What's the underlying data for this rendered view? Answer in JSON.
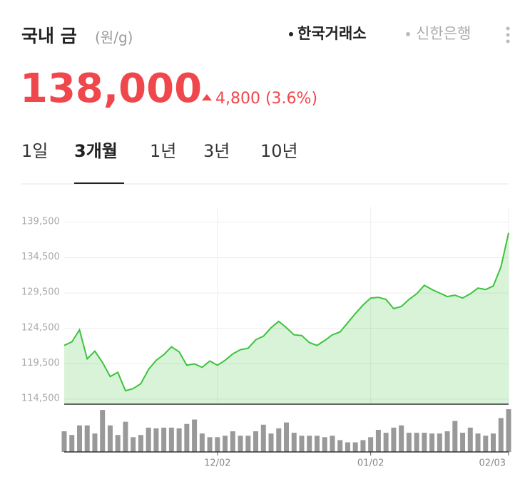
{
  "header": {
    "title": "국내 금",
    "unit": "(원/g)",
    "sources": [
      "한국거래소",
      "신한은행"
    ]
  },
  "price": {
    "value": "138,000",
    "change": "4,800 (3.6%)"
  },
  "tabs": [
    "1일",
    "3개월",
    "1년",
    "3년",
    "10년"
  ],
  "chart_data": [
    {
      "type": "area",
      "categories": [
        null,
        null,
        null,
        null,
        null,
        null,
        null,
        null,
        null,
        null,
        null,
        null,
        null,
        null,
        null,
        null,
        null,
        null,
        null,
        null,
        "12/02",
        null,
        null,
        null,
        null,
        null,
        null,
        null,
        null,
        null,
        null,
        null,
        null,
        null,
        null,
        null,
        null,
        null,
        null,
        null,
        "01/02",
        null,
        null,
        null,
        null,
        null,
        null,
        null,
        null,
        null,
        null,
        null,
        null,
        null,
        null,
        null,
        null,
        null,
        "02/03"
      ],
      "values": [
        122100,
        122600,
        124300,
        120200,
        121300,
        119700,
        117700,
        118300,
        115700,
        116000,
        116700,
        118700,
        120000,
        120800,
        121900,
        121200,
        119300,
        119500,
        119000,
        119900,
        119300,
        120000,
        120900,
        121500,
        121700,
        122900,
        123400,
        124600,
        125500,
        124600,
        123600,
        123500,
        122500,
        122100,
        122800,
        123600,
        124000,
        125300,
        126600,
        127800,
        128800,
        128900,
        128600,
        127300,
        127600,
        128600,
        129400,
        130600,
        130000,
        129500,
        129000,
        129200,
        128800,
        129400,
        130200,
        130000,
        130500,
        133200,
        138000
      ],
      "color": "#3cc43c",
      "ylim": [
        113800,
        141700
      ],
      "yticks": [
        {
          "value": 114500,
          "label": "114,500"
        },
        {
          "value": 119500,
          "label": "119,500"
        },
        {
          "value": 124500,
          "label": "124,500"
        },
        {
          "value": 129500,
          "label": "129,500"
        },
        {
          "value": 134500,
          "label": "134,500"
        },
        {
          "value": 139500,
          "label": "139,500"
        }
      ],
      "grid": true
    },
    {
      "type": "bar",
      "values": [
        28,
        23,
        36,
        36,
        25,
        57,
        36,
        23,
        41,
        20,
        23,
        33,
        32,
        33,
        33,
        32,
        38,
        44,
        25,
        20,
        20,
        22,
        28,
        22,
        22,
        28,
        37,
        25,
        32,
        40,
        26,
        22,
        22,
        22,
        20,
        22,
        16,
        13,
        13,
        16,
        20,
        30,
        26,
        33,
        36,
        26,
        26,
        26,
        25,
        25,
        28,
        42,
        26,
        33,
        25,
        22,
        25,
        46,
        58
      ],
      "color": "#999999",
      "ylim": [
        0,
        60
      ]
    }
  ]
}
